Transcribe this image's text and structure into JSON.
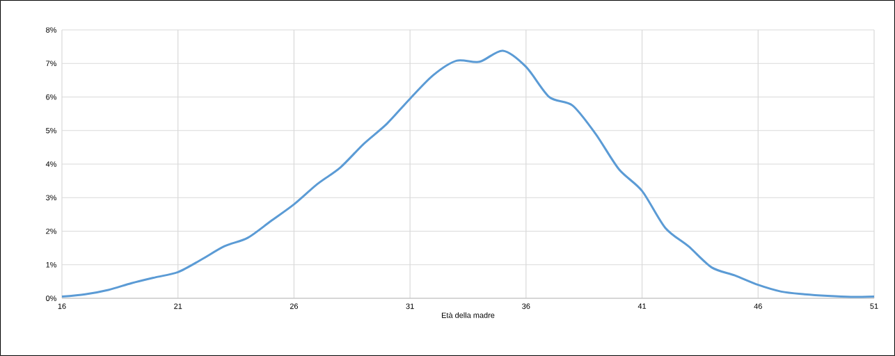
{
  "chart_data": {
    "type": "line",
    "xlabel": "Età della madre",
    "x": [
      16,
      17,
      18,
      19,
      20,
      21,
      22,
      23,
      24,
      25,
      26,
      27,
      28,
      29,
      30,
      31,
      32,
      33,
      34,
      35,
      36,
      37,
      38,
      39,
      40,
      41,
      42,
      43,
      44,
      45,
      46,
      47,
      48,
      49,
      50,
      51
    ],
    "values": [
      0.05,
      0.12,
      0.25,
      0.45,
      0.62,
      0.78,
      1.15,
      1.55,
      1.8,
      2.3,
      2.8,
      3.4,
      3.9,
      4.6,
      5.2,
      5.95,
      6.65,
      7.08,
      7.05,
      7.38,
      6.9,
      6.0,
      5.75,
      4.9,
      3.85,
      3.2,
      2.1,
      1.55,
      0.92,
      0.68,
      0.4,
      0.2,
      0.12,
      0.07,
      0.04,
      0.05
    ],
    "color": "#5b9bd5",
    "xlim": [
      16,
      51
    ],
    "ylim": [
      0,
      8
    ],
    "xticks": [
      16,
      21,
      26,
      31,
      36,
      41,
      46,
      51
    ],
    "yticks": [
      {
        "value": 0,
        "label": "0%"
      },
      {
        "value": 1,
        "label": "1%"
      },
      {
        "value": 2,
        "label": "2%"
      },
      {
        "value": 3,
        "label": "3%"
      },
      {
        "value": 4,
        "label": "4%"
      },
      {
        "value": 5,
        "label": "5%"
      },
      {
        "value": 6,
        "label": "6%"
      },
      {
        "value": 7,
        "label": "7%"
      },
      {
        "value": 8,
        "label": "8%"
      }
    ],
    "grid": true
  }
}
